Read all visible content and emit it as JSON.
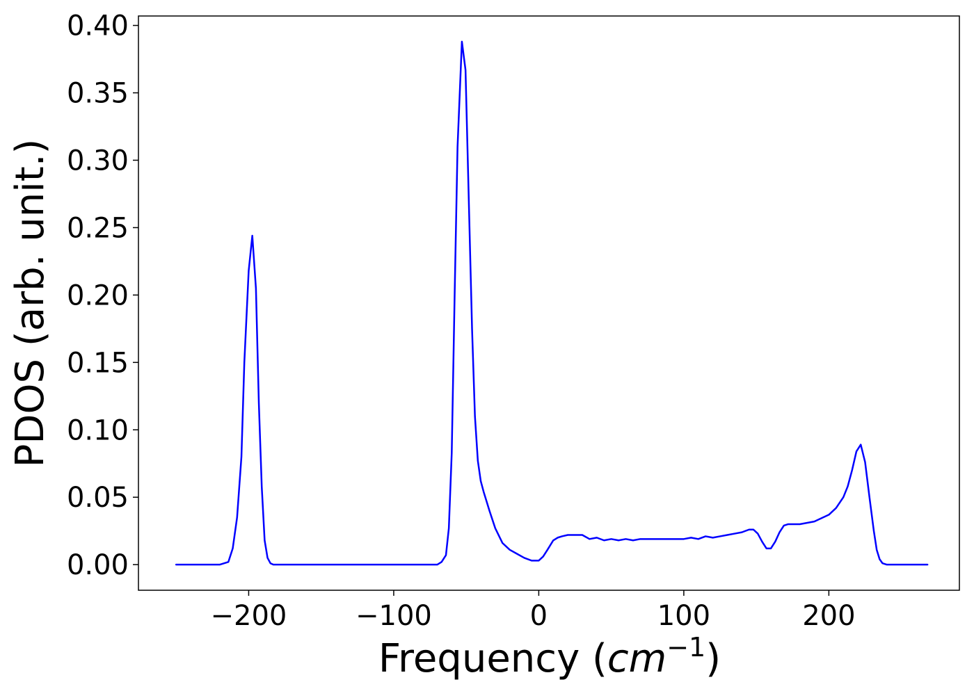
{
  "chart_data": {
    "type": "line",
    "xlabel_main": "Frequency (",
    "xlabel_unit": "cm",
    "xlabel_exponent": "−1",
    "xlabel_close": ")",
    "ylabel": "PDOS (arb. unit.)",
    "xlim": [
      -276,
      290
    ],
    "ylim": [
      -0.019,
      0.407
    ],
    "x_ticks": [
      -200,
      -100,
      0,
      100,
      200
    ],
    "x_tick_labels": [
      "−200",
      "−100",
      "0",
      "100",
      "200"
    ],
    "y_ticks": [
      0.0,
      0.05,
      0.1,
      0.15,
      0.2,
      0.25,
      0.3,
      0.35,
      0.4
    ],
    "y_tick_labels": [
      "0.00",
      "0.05",
      "0.10",
      "0.15",
      "0.20",
      "0.25",
      "0.30",
      "0.35",
      "0.40"
    ],
    "grid": false,
    "series": [
      {
        "color": "#0000ff",
        "x": [
          -250,
          -220,
          -214,
          -211,
          -208,
          -205,
          -203,
          -200,
          -197.5,
          -195,
          -193,
          -191,
          -189,
          -187,
          -185,
          -183,
          -180,
          -170,
          -150,
          -100,
          -80,
          -70,
          -67,
          -64,
          -62,
          -60,
          -58,
          -56,
          -53,
          -50.5,
          -48,
          -46,
          -44,
          -42,
          -40,
          -38,
          -36,
          -34,
          -30,
          -25,
          -20,
          -15,
          -10,
          -5,
          0,
          3,
          6,
          10,
          13,
          16,
          20,
          25,
          30,
          35,
          40,
          45,
          50,
          55,
          60,
          65,
          70,
          75,
          80,
          85,
          90,
          95,
          100,
          105,
          110,
          115,
          120,
          125,
          130,
          135,
          140,
          145,
          148,
          151,
          154,
          157,
          160,
          163,
          166,
          169,
          172,
          175,
          180,
          190,
          200,
          205,
          210,
          213,
          216,
          219,
          222,
          225,
          228,
          231,
          233,
          235,
          237,
          240,
          250,
          268
        ],
        "y": [
          0.0,
          0.0,
          0.002,
          0.012,
          0.035,
          0.08,
          0.15,
          0.218,
          0.244,
          0.205,
          0.12,
          0.058,
          0.018,
          0.005,
          0.001,
          0.0,
          0.0,
          0.0,
          0.0,
          0.0,
          0.0,
          0.0,
          0.002,
          0.007,
          0.027,
          0.083,
          0.2,
          0.31,
          0.388,
          0.367,
          0.26,
          0.175,
          0.11,
          0.077,
          0.062,
          0.054,
          0.047,
          0.04,
          0.027,
          0.016,
          0.011,
          0.008,
          0.005,
          0.003,
          0.003,
          0.006,
          0.011,
          0.018,
          0.02,
          0.021,
          0.022,
          0.022,
          0.022,
          0.019,
          0.02,
          0.018,
          0.019,
          0.018,
          0.019,
          0.018,
          0.019,
          0.019,
          0.019,
          0.019,
          0.019,
          0.019,
          0.019,
          0.02,
          0.019,
          0.021,
          0.02,
          0.021,
          0.022,
          0.023,
          0.024,
          0.026,
          0.026,
          0.023,
          0.017,
          0.012,
          0.012,
          0.017,
          0.024,
          0.029,
          0.03,
          0.03,
          0.03,
          0.032,
          0.037,
          0.042,
          0.05,
          0.058,
          0.07,
          0.084,
          0.089,
          0.076,
          0.05,
          0.025,
          0.011,
          0.004,
          0.001,
          0.0,
          0.0,
          0.0
        ]
      }
    ]
  }
}
